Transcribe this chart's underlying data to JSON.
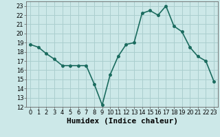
{
  "x": [
    0,
    1,
    2,
    3,
    4,
    5,
    6,
    7,
    8,
    9,
    10,
    11,
    12,
    13,
    14,
    15,
    16,
    17,
    18,
    19,
    20,
    21,
    22,
    23
  ],
  "y": [
    18.8,
    18.5,
    17.8,
    17.2,
    16.5,
    16.5,
    16.5,
    16.5,
    14.5,
    12.2,
    15.5,
    17.5,
    18.8,
    19.0,
    22.2,
    22.5,
    22.0,
    23.0,
    20.8,
    20.2,
    18.5,
    17.5,
    17.0,
    14.8
  ],
  "line_color": "#1a6b5e",
  "marker": "o",
  "markersize": 2.5,
  "linewidth": 1.2,
  "background_color": "#cce8e8",
  "grid_color": "#aacece",
  "xlabel": "Humidex (Indice chaleur)",
  "xlim": [
    -0.5,
    23.5
  ],
  "ylim": [
    12,
    23.5
  ],
  "yticks": [
    12,
    13,
    14,
    15,
    16,
    17,
    18,
    19,
    20,
    21,
    22,
    23
  ],
  "xticks": [
    0,
    1,
    2,
    3,
    4,
    5,
    6,
    7,
    8,
    9,
    10,
    11,
    12,
    13,
    14,
    15,
    16,
    17,
    18,
    19,
    20,
    21,
    22,
    23
  ],
  "tick_labelsize": 6,
  "xlabel_fontsize": 8
}
